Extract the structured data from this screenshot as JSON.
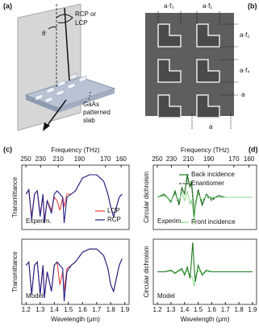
{
  "panel_a": {
    "label": "(a)",
    "rotation": [
      "RCP or",
      "LCP"
    ],
    "angle": "θ",
    "slab": [
      "GaAs",
      "patterned",
      "slab"
    ]
  },
  "panel_b": {
    "label": "(b)",
    "dims": [
      "a·f₃",
      "a·f₁",
      "a·f₂",
      "a·f₄",
      "a",
      "a"
    ]
  },
  "chart_data": [
    {
      "type": "line",
      "label": "(c)",
      "x2_label": "Frequency (THz)",
      "ylabel": "Transmittance",
      "annotation": "Experim.",
      "legend": true,
      "xlim": [
        1.17,
        1.93
      ],
      "ylim": [
        0,
        1
      ],
      "x2ticks": [
        {
          "value": 1.199,
          "label": "250"
        },
        {
          "value": 1.303,
          "label": "230"
        },
        {
          "value": 1.428,
          "label": "210"
        },
        {
          "value": 1.578,
          "label": "190"
        },
        {
          "value": 1.763,
          "label": "170"
        },
        {
          "value": 1.874,
          "label": "160"
        }
      ],
      "x": [
        1.2,
        1.22,
        1.24,
        1.26,
        1.28,
        1.3,
        1.32,
        1.33,
        1.35,
        1.38,
        1.4,
        1.42,
        1.44,
        1.46,
        1.47,
        1.49,
        1.52,
        1.55,
        1.6,
        1.65,
        1.7,
        1.75,
        1.78,
        1.8,
        1.82,
        1.84,
        1.86,
        1.88
      ],
      "series": [
        {
          "name": "LCP",
          "color": "#e8403a",
          "values": [
            0.55,
            0.6,
            0.2,
            0.55,
            0.6,
            0.25,
            0.5,
            0.15,
            0.45,
            0.3,
            0.5,
            0.45,
            0.3,
            0.5,
            0.35,
            0.55,
            0.55,
            0.6,
            0.8,
            0.85,
            0.85,
            0.75,
            0.55,
            0.35,
            0.2,
            0.35,
            0.5,
            0.55
          ]
        },
        {
          "name": "RCP",
          "color": "#22228a",
          "values": [
            0.55,
            0.62,
            0.15,
            0.55,
            0.6,
            0.2,
            0.55,
            0.1,
            0.45,
            0.25,
            0.55,
            0.6,
            0.55,
            0.5,
            0.1,
            0.5,
            0.55,
            0.6,
            0.8,
            0.85,
            0.85,
            0.75,
            0.55,
            0.35,
            0.2,
            0.35,
            0.5,
            0.55
          ]
        }
      ]
    },
    {
      "type": "line",
      "ylabel": "Transmittance",
      "annotation": "Model",
      "xlabel": "Wavelength (μm)",
      "xlim": [
        1.17,
        1.93
      ],
      "ylim": [
        0,
        1
      ],
      "xticks": [
        1.2,
        1.3,
        1.4,
        1.5,
        1.6,
        1.7,
        1.8,
        1.9
      ],
      "x": [
        1.2,
        1.22,
        1.24,
        1.26,
        1.28,
        1.3,
        1.32,
        1.33,
        1.35,
        1.38,
        1.4,
        1.42,
        1.44,
        1.46,
        1.47,
        1.49,
        1.52,
        1.55,
        1.6,
        1.65,
        1.7,
        1.75,
        1.78,
        1.8,
        1.82,
        1.84,
        1.86,
        1.88
      ],
      "series": [
        {
          "color": "#e8403a",
          "values": [
            0.6,
            0.65,
            0.15,
            0.6,
            0.65,
            0.15,
            0.6,
            0.1,
            0.5,
            0.2,
            0.6,
            0.65,
            0.3,
            0.5,
            0.2,
            0.55,
            0.6,
            0.65,
            0.8,
            0.85,
            0.85,
            0.75,
            0.55,
            0.3,
            0.2,
            0.4,
            0.6,
            0.7
          ]
        },
        {
          "color": "#22228a",
          "values": [
            0.6,
            0.65,
            0.15,
            0.6,
            0.65,
            0.15,
            0.6,
            0.1,
            0.5,
            0.2,
            0.6,
            0.65,
            0.6,
            0.55,
            0.05,
            0.5,
            0.6,
            0.65,
            0.8,
            0.85,
            0.85,
            0.75,
            0.55,
            0.3,
            0.2,
            0.4,
            0.6,
            0.7
          ]
        }
      ]
    },
    {
      "type": "line",
      "label": "(d)",
      "x2_label": "Frequency (THz)",
      "ylabel": "Circular dichroism",
      "annotation": "Experim.",
      "legend": true,
      "xlim": [
        1.17,
        1.93
      ],
      "ylim": [
        -1,
        1
      ],
      "x2ticks": [
        {
          "value": 1.199,
          "label": "250"
        },
        {
          "value": 1.303,
          "label": "230"
        },
        {
          "value": 1.428,
          "label": "210"
        },
        {
          "value": 1.578,
          "label": "190"
        },
        {
          "value": 1.763,
          "label": "170"
        },
        {
          "value": 1.874,
          "label": "160"
        }
      ],
      "x": [
        1.2,
        1.25,
        1.3,
        1.33,
        1.36,
        1.38,
        1.4,
        1.42,
        1.44,
        1.45,
        1.46,
        1.47,
        1.48,
        1.5,
        1.53,
        1.56,
        1.6,
        1.65,
        1.7,
        1.8,
        1.9
      ],
      "series": [
        {
          "name": "Back incidence",
          "color": "#1e7a1e",
          "values": [
            0,
            0.1,
            -0.15,
            0.2,
            -0.2,
            0.3,
            0.1,
            0.7,
            0.3,
            0.5,
            0.1,
            -0.6,
            -0.2,
            0.2,
            -0.25,
            0.1,
            -0.05,
            0.05,
            0,
            0,
            0
          ]
        },
        {
          "name": "Enantiomer",
          "color": "#2f5f2f",
          "dash": true,
          "values": [
            0,
            0.08,
            -0.1,
            0.15,
            -0.25,
            0.25,
            0.15,
            0.6,
            0.35,
            0.45,
            0,
            -0.5,
            -0.3,
            0.25,
            -0.2,
            0.05,
            -0.1,
            0.05,
            0,
            0,
            0
          ]
        },
        {
          "name": "Front incidence",
          "color": "#8fd88f",
          "values": [
            0,
            0.05,
            -0.1,
            0.1,
            -0.1,
            0.15,
            -0.1,
            0.2,
            -0.2,
            -0.1,
            -0.3,
            -0.85,
            -0.3,
            0.1,
            -0.1,
            0.05,
            0,
            0,
            0,
            0,
            0
          ]
        }
      ]
    },
    {
      "type": "line",
      "ylabel": "Circular dichroism",
      "annotation": "Model",
      "xlabel": "Wavelength (μm)",
      "xlim": [
        1.17,
        1.93
      ],
      "ylim": [
        -1,
        1
      ],
      "xticks": [
        1.2,
        1.3,
        1.4,
        1.5,
        1.6,
        1.7,
        1.8,
        1.9
      ],
      "x": [
        1.2,
        1.25,
        1.3,
        1.33,
        1.36,
        1.38,
        1.4,
        1.42,
        1.44,
        1.45,
        1.46,
        1.47,
        1.48,
        1.5,
        1.53,
        1.56,
        1.6,
        1.65,
        1.7,
        1.8,
        1.9
      ],
      "series": [
        {
          "color": "#8fd88f",
          "values": [
            0,
            0,
            0.02,
            -0.02,
            0.02,
            0.05,
            -0.05,
            0.05,
            -0.1,
            -0.15,
            -0.2,
            -0.45,
            -0.15,
            0.05,
            -0.05,
            0,
            0,
            0,
            0,
            0,
            0
          ]
        },
        {
          "color": "#1e7a1e",
          "values": [
            0,
            0,
            0.05,
            -0.05,
            0.05,
            0.1,
            -0.1,
            0.15,
            -0.2,
            0.3,
            0.9,
            0.2,
            -0.3,
            0.2,
            -0.1,
            0.05,
            0,
            0,
            0,
            0,
            0
          ]
        }
      ]
    }
  ]
}
